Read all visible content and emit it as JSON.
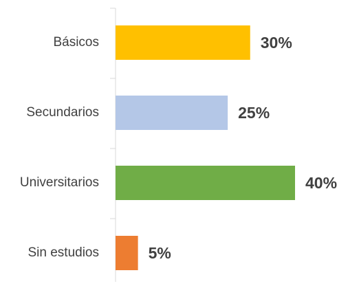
{
  "chart_data": {
    "type": "barh",
    "categories": [
      "Básicos",
      "Secundarios",
      "Universitarios",
      "Sin estudios"
    ],
    "values": [
      30,
      25,
      40,
      5
    ],
    "value_labels": [
      "30%",
      "25%",
      "40%",
      "5%"
    ],
    "colors": [
      "#ffc000",
      "#b4c7e7",
      "#70ad47",
      "#ed7d31"
    ]
  }
}
